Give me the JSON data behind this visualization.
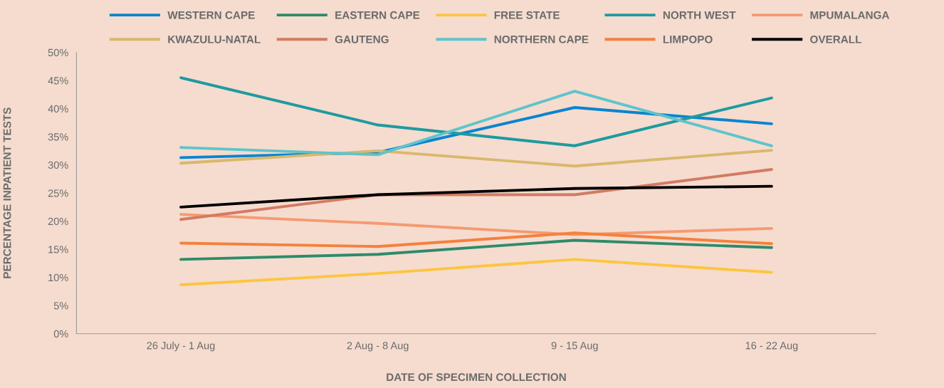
{
  "chart_data": {
    "type": "line",
    "xlabel": "DATE OF SPECIMEN COLLECTION",
    "ylabel": "PERCENTAGE INPATIENT TESTS",
    "categories": [
      "26 July - 1 Aug",
      "2 Aug - 8 Aug",
      "9 - 15 Aug",
      "16 - 22 Aug"
    ],
    "ylim": [
      0,
      50
    ],
    "yticks": [
      {
        "value": 0,
        "label": "0%"
      },
      {
        "value": 5,
        "label": "5%"
      },
      {
        "value": 10,
        "label": "10%"
      },
      {
        "value": 15,
        "label": "15%"
      },
      {
        "value": 20,
        "label": "20%"
      },
      {
        "value": 25,
        "label": "25%"
      },
      {
        "value": 30,
        "label": "30%"
      },
      {
        "value": 35,
        "label": "35%"
      },
      {
        "value": 40,
        "label": "40%"
      },
      {
        "value": 45,
        "label": "45%"
      },
      {
        "value": 50,
        "label": "50%"
      }
    ],
    "grid": false,
    "legend": "top",
    "marker": "none",
    "line_style": "solid",
    "series": [
      {
        "name": "WESTERN CAPE",
        "color": "#0a84d0",
        "values": [
          31.3,
          32.2,
          40.2,
          37.3
        ]
      },
      {
        "name": "EASTERN CAPE",
        "color": "#2e8b6a",
        "values": [
          13.2,
          14.1,
          16.6,
          15.3
        ]
      },
      {
        "name": "FREE STATE",
        "color": "#fdc540",
        "values": [
          8.7,
          10.7,
          13.2,
          10.9
        ]
      },
      {
        "name": "NORTH WEST",
        "color": "#1f9aa0",
        "values": [
          45.5,
          37.1,
          33.4,
          41.9
        ]
      },
      {
        "name": "MPUMALANGA",
        "color": "#f59a72",
        "values": [
          21.2,
          19.6,
          17.6,
          18.7
        ]
      },
      {
        "name": "KWAZULU-NATAL",
        "color": "#d9b86c",
        "values": [
          30.3,
          32.5,
          29.8,
          32.6
        ]
      },
      {
        "name": "GAUTENG",
        "color": "#d37b63",
        "values": [
          20.3,
          24.7,
          24.7,
          29.2
        ]
      },
      {
        "name": "NORTHERN CAPE",
        "color": "#5ec4cc",
        "values": [
          33.1,
          31.8,
          43.1,
          33.4
        ]
      },
      {
        "name": "LIMPOPO",
        "color": "#f4813d",
        "values": [
          16.1,
          15.5,
          17.9,
          16.0
        ]
      },
      {
        "name": "OVERALL",
        "color": "#000000",
        "values": [
          22.5,
          24.7,
          25.8,
          26.2
        ]
      }
    ]
  }
}
